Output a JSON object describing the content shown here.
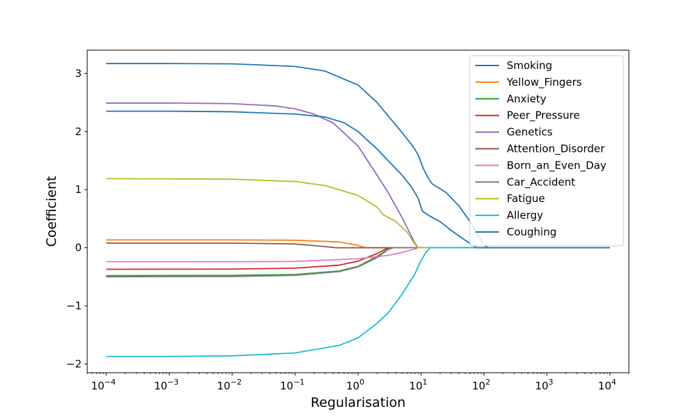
{
  "chart_data": {
    "type": "line",
    "title": "",
    "xlabel": "Regularisation",
    "ylabel": "Coefficient",
    "xscale": "log",
    "xlim": [
      5e-05,
      20000
    ],
    "ylim": [
      -2.15,
      3.4
    ],
    "grid": false,
    "legend_position": "top-right",
    "x_ticks": [
      {
        "value": 0.0001,
        "base": "10",
        "exp": "−4"
      },
      {
        "value": 0.001,
        "base": "10",
        "exp": "−3"
      },
      {
        "value": 0.01,
        "base": "10",
        "exp": "−2"
      },
      {
        "value": 0.1,
        "base": "10",
        "exp": "−1"
      },
      {
        "value": 1,
        "base": "10",
        "exp": "0"
      },
      {
        "value": 10,
        "base": "10",
        "exp": "1"
      },
      {
        "value": 100,
        "base": "10",
        "exp": "2"
      },
      {
        "value": 1000,
        "base": "10",
        "exp": "3"
      },
      {
        "value": 10000,
        "base": "10",
        "exp": "4"
      }
    ],
    "y_ticks": [
      {
        "value": -2,
        "label": "−2"
      },
      {
        "value": -1,
        "label": "−1"
      },
      {
        "value": 0,
        "label": "0"
      },
      {
        "value": 1,
        "label": "1"
      },
      {
        "value": 2,
        "label": "2"
      },
      {
        "value": 3,
        "label": "3"
      }
    ],
    "series": [
      {
        "name": "Smoking",
        "color": "#1f77b4",
        "points": [
          [
            0.0001,
            3.17
          ],
          [
            0.001,
            3.17
          ],
          [
            0.01,
            3.165
          ],
          [
            0.1,
            3.12
          ],
          [
            0.3,
            3.04
          ],
          [
            1,
            2.8
          ],
          [
            2,
            2.5
          ],
          [
            3,
            2.27
          ],
          [
            5,
            1.98
          ],
          [
            7.5,
            1.74
          ],
          [
            9,
            1.6
          ],
          [
            11,
            1.35
          ],
          [
            13,
            1.2
          ],
          [
            15,
            1.1
          ],
          [
            25,
            0.95
          ],
          [
            40,
            0.72
          ],
          [
            60,
            0.45
          ],
          [
            80,
            0.22
          ],
          [
            100,
            0.05
          ],
          [
            115,
            0.0
          ],
          [
            10000,
            0.0
          ]
        ]
      },
      {
        "name": "Yellow_Fingers",
        "color": "#ff7f0e",
        "points": [
          [
            0.0001,
            0.135
          ],
          [
            0.01,
            0.135
          ],
          [
            0.1,
            0.13
          ],
          [
            0.5,
            0.1
          ],
          [
            1,
            0.04
          ],
          [
            1.3,
            0.0
          ],
          [
            10000,
            0.0
          ]
        ]
      },
      {
        "name": "Anxiety",
        "color": "#2ca02c",
        "points": [
          [
            0.0001,
            -0.48
          ],
          [
            0.01,
            -0.475
          ],
          [
            0.1,
            -0.46
          ],
          [
            0.5,
            -0.4
          ],
          [
            1,
            -0.32
          ],
          [
            2,
            -0.15
          ],
          [
            3,
            -0.02
          ],
          [
            3.4,
            0.0
          ],
          [
            10000,
            0.0
          ]
        ]
      },
      {
        "name": "Peer_Pressure",
        "color": "#d62728",
        "points": [
          [
            0.0001,
            -0.37
          ],
          [
            0.01,
            -0.367
          ],
          [
            0.1,
            -0.35
          ],
          [
            0.5,
            -0.3
          ],
          [
            1,
            -0.23
          ],
          [
            2,
            -0.1
          ],
          [
            3,
            0.0
          ],
          [
            10000,
            0.0
          ]
        ]
      },
      {
        "name": "Genetics",
        "color": "#9467bd",
        "points": [
          [
            0.0001,
            2.49
          ],
          [
            0.001,
            2.49
          ],
          [
            0.01,
            2.48
          ],
          [
            0.05,
            2.44
          ],
          [
            0.1,
            2.39
          ],
          [
            0.2,
            2.3
          ],
          [
            0.4,
            2.15
          ],
          [
            1,
            1.75
          ],
          [
            2,
            1.25
          ],
          [
            3,
            0.95
          ],
          [
            5,
            0.52
          ],
          [
            8,
            0.08
          ],
          [
            9,
            0.0
          ],
          [
            10000,
            0.0
          ]
        ]
      },
      {
        "name": "Attention_Disorder",
        "color": "#8c564b",
        "points": [
          [
            0.0001,
            0.08
          ],
          [
            0.01,
            0.08
          ],
          [
            0.1,
            0.065
          ],
          [
            0.3,
            0.02
          ],
          [
            0.45,
            0.0
          ],
          [
            10000,
            0.0
          ]
        ]
      },
      {
        "name": "Born_an_Even_Day",
        "color": "#e377c2",
        "points": [
          [
            0.0001,
            -0.24
          ],
          [
            0.01,
            -0.24
          ],
          [
            0.1,
            -0.235
          ],
          [
            1,
            -0.19
          ],
          [
            3,
            -0.13
          ],
          [
            5,
            -0.08
          ],
          [
            8,
            -0.02
          ],
          [
            9,
            0.0
          ],
          [
            10000,
            0.0
          ]
        ]
      },
      {
        "name": "Car_Accident",
        "color": "#7f7f7f",
        "points": [
          [
            0.0001,
            -0.5
          ],
          [
            0.01,
            -0.495
          ],
          [
            0.1,
            -0.475
          ],
          [
            0.5,
            -0.41
          ],
          [
            1,
            -0.33
          ],
          [
            2,
            -0.17
          ],
          [
            3,
            -0.03
          ],
          [
            3.6,
            0.0
          ],
          [
            10000,
            0.0
          ]
        ]
      },
      {
        "name": "Fatigue",
        "color": "#bcbd22",
        "points": [
          [
            0.0001,
            1.19
          ],
          [
            0.01,
            1.18
          ],
          [
            0.1,
            1.14
          ],
          [
            0.3,
            1.07
          ],
          [
            1,
            0.9
          ],
          [
            2,
            0.7
          ],
          [
            2.5,
            0.57
          ],
          [
            4,
            0.45
          ],
          [
            6,
            0.27
          ],
          [
            8,
            0.06
          ],
          [
            9,
            0.0
          ],
          [
            10000,
            0.0
          ]
        ]
      },
      {
        "name": "Allergy",
        "color": "#17becf",
        "points": [
          [
            0.0001,
            -1.87
          ],
          [
            0.001,
            -1.87
          ],
          [
            0.01,
            -1.86
          ],
          [
            0.1,
            -1.81
          ],
          [
            0.5,
            -1.68
          ],
          [
            1,
            -1.55
          ],
          [
            2,
            -1.3
          ],
          [
            3,
            -1.12
          ],
          [
            5,
            -0.8
          ],
          [
            8,
            -0.45
          ],
          [
            10,
            -0.22
          ],
          [
            12,
            -0.08
          ],
          [
            14,
            0.0
          ],
          [
            10000,
            0.0
          ]
        ]
      },
      {
        "name": "Coughing",
        "color": "#1f77b4",
        "points": [
          [
            0.0001,
            2.35
          ],
          [
            0.001,
            2.35
          ],
          [
            0.01,
            2.34
          ],
          [
            0.1,
            2.3
          ],
          [
            0.3,
            2.25
          ],
          [
            0.6,
            2.15
          ],
          [
            1,
            2.0
          ],
          [
            2,
            1.7
          ],
          [
            3,
            1.5
          ],
          [
            5,
            1.25
          ],
          [
            7,
            1.05
          ],
          [
            9,
            0.85
          ],
          [
            10.5,
            0.63
          ],
          [
            13,
            0.56
          ],
          [
            20,
            0.45
          ],
          [
            30,
            0.3
          ],
          [
            50,
            0.13
          ],
          [
            70,
            0.03
          ],
          [
            75,
            0.0
          ],
          [
            10000,
            0.0
          ]
        ]
      }
    ]
  }
}
